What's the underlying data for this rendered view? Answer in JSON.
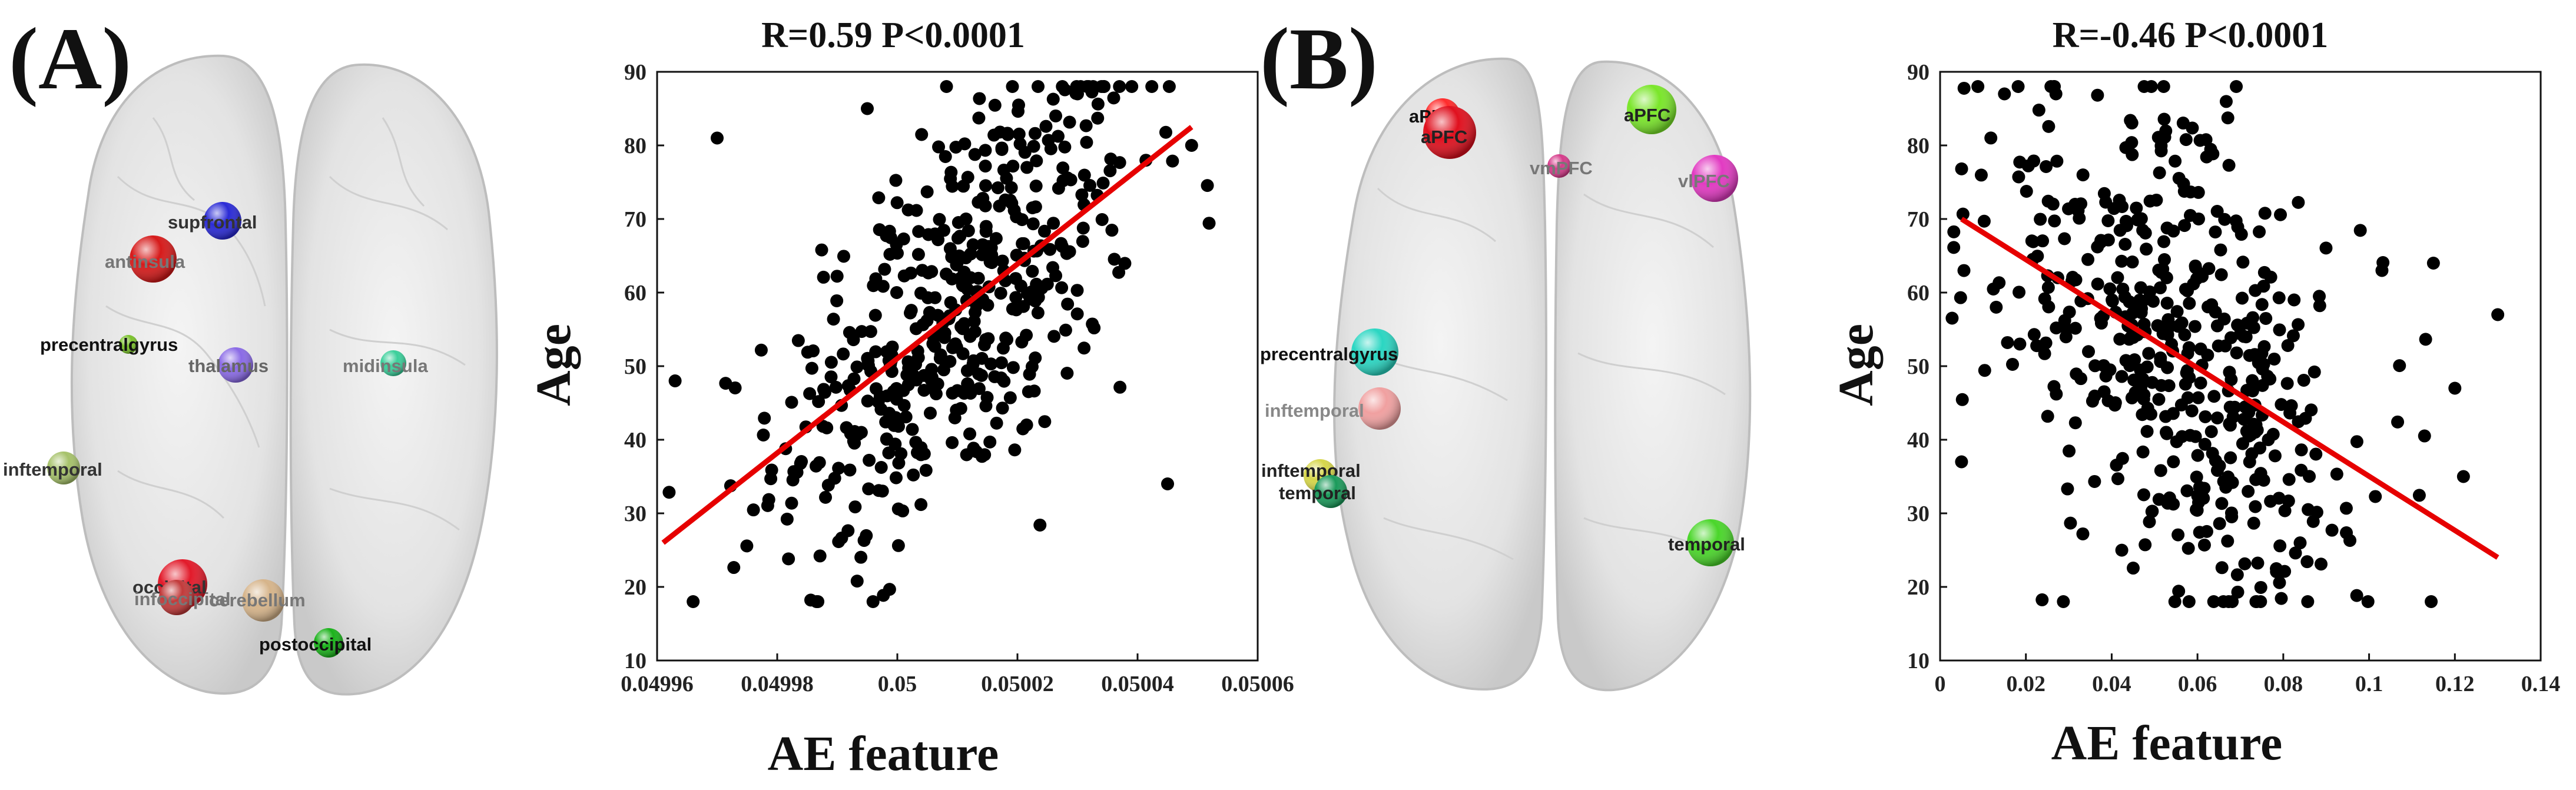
{
  "panels": [
    {
      "label": "(A)",
      "regions": [
        {
          "name": "supfrontal",
          "color": "#2a2ad6",
          "text_color": "#333333",
          "bold": true
        },
        {
          "name": "antinsula",
          "color": "#d61a1a",
          "text_color": "#777777",
          "bold": false
        },
        {
          "name": "precentralgyrus",
          "color": "#7ac22a",
          "text_color": "#111111",
          "bold": true
        },
        {
          "name": "thalamus",
          "color": "#8a6ae6",
          "text_color": "#666666",
          "bold": false
        },
        {
          "name": "midinsula",
          "color": "#3acf9a",
          "text_color": "#777777",
          "bold": false
        },
        {
          "name": "inftemporal",
          "color": "#a6c26a",
          "text_color": "#333333",
          "bold": true
        },
        {
          "name": "occipital",
          "color": "#e21a2a",
          "text_color": "#333333",
          "bold": true
        },
        {
          "name": "infoccipital",
          "color": "#c23a3a",
          "text_color": "#777777",
          "bold": false
        },
        {
          "name": "cerebellum",
          "color": "#d6b48a",
          "text_color": "#777777",
          "bold": false
        },
        {
          "name": "postoccipital",
          "color": "#1ab21a",
          "text_color": "#111111",
          "bold": true
        }
      ]
    },
    {
      "label": "(B)",
      "regions": [
        {
          "name": "aPFC",
          "color": "#ff2a2a",
          "text_color": "#111111",
          "bold": true
        },
        {
          "name": "aPFC",
          "color": "#e0101e",
          "text_color": "#222222",
          "bold": true
        },
        {
          "name": "aPFC",
          "color": "#7ae62a",
          "text_color": "#222222",
          "bold": true
        },
        {
          "name": "vmPFC",
          "color": "#d63a8a",
          "text_color": "#777777",
          "bold": false
        },
        {
          "name": "vlPFC",
          "color": "#e23ac2",
          "text_color": "#777777",
          "bold": false
        },
        {
          "name": "precentralgyrus",
          "color": "#2ad6c2",
          "text_color": "#111111",
          "bold": true
        },
        {
          "name": "inftemporal",
          "color": "#f0a0a0",
          "text_color": "#888888",
          "bold": false
        },
        {
          "name": "inftemporal",
          "color": "#d6d64a",
          "text_color": "#222222",
          "bold": true
        },
        {
          "name": "temporal",
          "color": "#1a9a5a",
          "text_color": "#222222",
          "bold": true
        },
        {
          "name": "temporal",
          "color": "#4ad62a",
          "text_color": "#222222",
          "bold": true
        }
      ]
    }
  ],
  "chart_data": [
    {
      "type": "scatter",
      "title": "R=0.59 P<0.0001",
      "xlabel": "AE feature",
      "ylabel": "Age",
      "xlim": [
        0.04996,
        0.05006
      ],
      "ylim": [
        10,
        90
      ],
      "xticks": [
        0.04996,
        0.04998,
        0.05,
        0.05002,
        0.05004,
        0.05006
      ],
      "xtick_labels": [
        "0.04996",
        "0.04998",
        "0.05",
        "0.05002",
        "0.05004",
        "0.05006"
      ],
      "yticks": [
        10,
        20,
        30,
        40,
        50,
        60,
        70,
        80,
        90
      ],
      "ytick_labels": [
        "10",
        "20",
        "30",
        "40",
        "50",
        "60",
        "70",
        "80",
        "90"
      ],
      "grid": false,
      "point_color": "#000000",
      "fit_color": "#e60000",
      "fit_line": {
        "x": [
          0.049961,
          0.050049
        ],
        "y": [
          26,
          82.5
        ]
      },
      "x_center": 0.05001,
      "x_spread": 1.5e-05,
      "point_count": 480,
      "r": 0.59,
      "extra_points": [
        [
          0.049995,
          85
        ],
        [
          0.050045,
          34
        ],
        [
          0.049963,
          48
        ],
        [
          0.04997,
          81
        ],
        [
          0.049966,
          18
        ],
        [
          0.050049,
          80
        ],
        [
          0.05003,
          87
        ]
      ]
    },
    {
      "type": "scatter",
      "title": "R=-0.46 P<0.0001",
      "xlabel": "AE feature",
      "ylabel": "Age",
      "xlim": [
        0,
        0.14
      ],
      "ylim": [
        10,
        90
      ],
      "xticks": [
        0,
        0.02,
        0.04,
        0.06,
        0.08,
        0.1,
        0.12,
        0.14
      ],
      "xtick_labels": [
        "0",
        "0.02",
        "0.04",
        "0.06",
        "0.08",
        "0.1",
        "0.12",
        "0.14"
      ],
      "yticks": [
        10,
        20,
        30,
        40,
        50,
        60,
        70,
        80,
        90
      ],
      "ytick_labels": [
        "10",
        "20",
        "30",
        "40",
        "50",
        "60",
        "70",
        "80",
        "90"
      ],
      "grid": false,
      "point_color": "#000000",
      "fit_color": "#e60000",
      "fit_line": {
        "x": [
          0.005,
          0.13
        ],
        "y": [
          70,
          24
        ]
      },
      "x_center": 0.055,
      "x_spread": 0.022,
      "point_count": 480,
      "r": -0.46,
      "extra_points": [
        [
          0.005,
          37
        ],
        [
          0.13,
          57
        ],
        [
          0.12,
          47
        ],
        [
          0.115,
          64
        ],
        [
          0.122,
          35
        ],
        [
          0.103,
          63
        ],
        [
          0.015,
          87
        ],
        [
          0.027,
          87
        ]
      ]
    }
  ]
}
